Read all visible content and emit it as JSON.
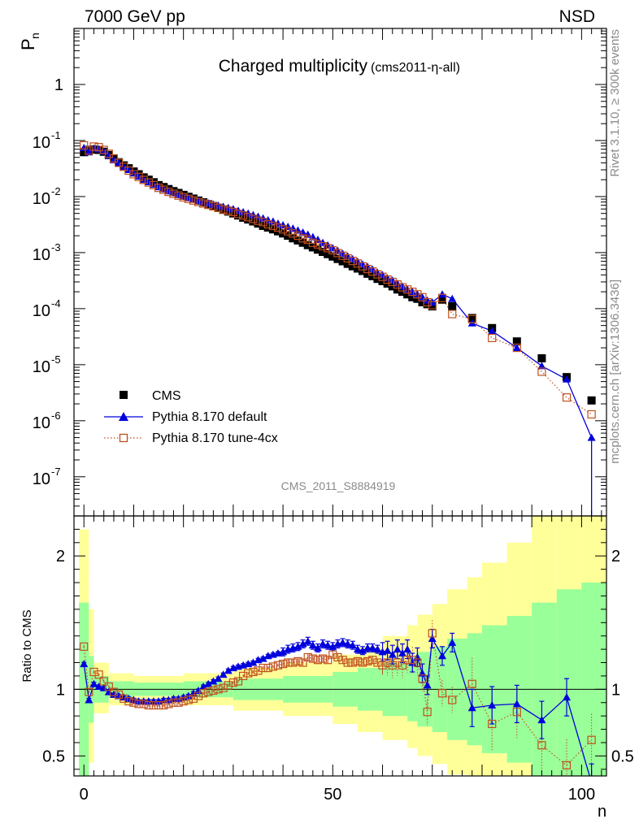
{
  "chart_data": [
    {
      "type": "scatter",
      "panel": "main",
      "title": "Charged multiplicity",
      "title_suffix": "(cms2011-η-all)",
      "top_left": "7000 GeV pp",
      "top_right": "NSD",
      "ylabel_main": "P",
      "ylabel_sub": "n",
      "xlabel": "n",
      "yscale": "log",
      "ylim": [
        2e-08,
        10
      ],
      "xlim": [
        -2,
        105
      ],
      "y_ticks": [
        {
          "value": 1e-07,
          "base": "10",
          "exp": "-7"
        },
        {
          "value": 1e-06,
          "base": "10",
          "exp": "-6"
        },
        {
          "value": 1e-05,
          "base": "10",
          "exp": "-5"
        },
        {
          "value": 0.0001,
          "base": "10",
          "exp": "-4"
        },
        {
          "value": 0.001,
          "base": "10",
          "exp": "-3"
        },
        {
          "value": 0.01,
          "base": "10",
          "exp": "-2"
        },
        {
          "value": 0.1,
          "base": "10",
          "exp": "-1"
        },
        {
          "value": 1,
          "base": "1",
          "exp": ""
        }
      ],
      "analysis_label": "CMS_2011_S8884919",
      "legend": [
        "CMS",
        "Pythia 8.170 default",
        "Pythia 8.170 tune-4cx"
      ],
      "series": [
        {
          "name": "CMS",
          "x": [
            0,
            1,
            2,
            3,
            4,
            5,
            6,
            7,
            8,
            9,
            10,
            11,
            12,
            13,
            14,
            15,
            16,
            17,
            18,
            19,
            20,
            21,
            22,
            23,
            24,
            25,
            26,
            27,
            28,
            29,
            30,
            31,
            32,
            33,
            34,
            35,
            36,
            37,
            38,
            39,
            40,
            41,
            42,
            43,
            44,
            45,
            46,
            47,
            48,
            49,
            50,
            51,
            52,
            53,
            54,
            55,
            56,
            57,
            58,
            59,
            60,
            61,
            62,
            63,
            64,
            65,
            66,
            67,
            68,
            69,
            70,
            72,
            74,
            78,
            82,
            87,
            92,
            97,
            102
          ],
          "y": [
            0.062,
            0.068,
            0.069,
            0.068,
            0.063,
            0.055,
            0.047,
            0.041,
            0.036,
            0.032,
            0.028,
            0.025,
            0.022,
            0.02,
            0.018,
            0.016,
            0.0148,
            0.0136,
            0.0125,
            0.0116,
            0.0107,
            0.0099,
            0.0092,
            0.0085,
            0.0079,
            0.0073,
            0.0068,
            0.0063,
            0.0058,
            0.0054,
            0.005,
            0.0046,
            0.0042,
            0.0039,
            0.0036,
            0.0033,
            0.003,
            0.0028,
            0.0026,
            0.0024,
            0.0022,
            0.002,
            0.0018,
            0.00165,
            0.0015,
            0.00136,
            0.00124,
            0.00113,
            0.00103,
            0.00094,
            0.00085,
            0.00077,
            0.0007,
            0.00063,
            0.00057,
            0.00052,
            0.00047,
            0.00042,
            0.00038,
            0.00034,
            0.00031,
            0.00028,
            0.00025,
            0.00022,
            0.0002,
            0.00018,
            0.00016,
            0.00015,
            0.00013,
            0.00012,
            0.00011,
            0.000145,
            0.00011,
            6.8e-05,
            4.5e-05,
            2.6e-05,
            1.3e-05,
            6e-06,
            2.3e-06
          ]
        },
        {
          "name": "Pythia 8.170 default",
          "x": [
            0,
            1,
            2,
            3,
            4,
            5,
            6,
            7,
            8,
            9,
            10,
            11,
            12,
            13,
            14,
            15,
            16,
            17,
            18,
            19,
            20,
            21,
            22,
            23,
            24,
            25,
            26,
            27,
            28,
            29,
            30,
            31,
            32,
            33,
            34,
            35,
            36,
            37,
            38,
            39,
            40,
            41,
            42,
            43,
            44,
            45,
            46,
            47,
            48,
            49,
            50,
            51,
            52,
            53,
            54,
            55,
            56,
            57,
            58,
            59,
            60,
            61,
            62,
            63,
            64,
            65,
            66,
            67,
            68,
            69,
            70,
            72,
            74,
            78,
            82,
            87,
            92,
            97,
            102
          ],
          "y": [
            0.074,
            0.062,
            0.072,
            0.07,
            0.064,
            0.054,
            0.045,
            0.039,
            0.034,
            0.03,
            0.026,
            0.023,
            0.02,
            0.0182,
            0.0164,
            0.0148,
            0.0136,
            0.0125,
            0.0116,
            0.0107,
            0.01,
            0.0095,
            0.0089,
            0.0084,
            0.008,
            0.0076,
            0.0072,
            0.0069,
            0.0066,
            0.0063,
            0.006,
            0.0056,
            0.0053,
            0.005,
            0.0047,
            0.0044,
            0.0041,
            0.0038,
            0.0036,
            0.0033,
            0.0031,
            0.0029,
            0.0027,
            0.0025,
            0.0023,
            0.0021,
            0.0019,
            0.0017,
            0.0015,
            0.00135,
            0.0012,
            0.00108,
            0.00096,
            0.00086,
            0.00077,
            0.00069,
            0.00062,
            0.00056,
            0.0005,
            0.00044,
            0.0004,
            0.00035,
            0.00032,
            0.00028,
            0.00025,
            0.00022,
            0.0002,
            0.00018,
            0.00016,
            0.00014,
            0.00013,
            0.00018,
            0.00015,
            5.5e-05,
            4e-05,
            2e-05,
            9.5e-06,
            5.5e-06,
            5e-07
          ]
        },
        {
          "name": "Pythia 8.170 tune-4cx",
          "x": [
            0,
            1,
            2,
            3,
            4,
            5,
            6,
            7,
            8,
            9,
            10,
            11,
            12,
            13,
            14,
            15,
            16,
            17,
            18,
            19,
            20,
            21,
            22,
            23,
            24,
            25,
            26,
            27,
            28,
            29,
            30,
            31,
            32,
            33,
            34,
            35,
            36,
            37,
            38,
            39,
            40,
            41,
            42,
            43,
            44,
            45,
            46,
            47,
            48,
            49,
            50,
            51,
            52,
            53,
            54,
            55,
            56,
            57,
            58,
            59,
            60,
            61,
            62,
            63,
            64,
            65,
            66,
            67,
            68,
            69,
            70,
            72,
            74,
            78,
            82,
            87,
            92,
            97,
            102
          ],
          "y": [
            0.082,
            0.066,
            0.078,
            0.076,
            0.068,
            0.058,
            0.048,
            0.04,
            0.034,
            0.029,
            0.025,
            0.0224,
            0.0198,
            0.0178,
            0.016,
            0.0143,
            0.0132,
            0.0121,
            0.0112,
            0.0104,
            0.0097,
            0.0091,
            0.0085,
            0.008,
            0.0075,
            0.0071,
            0.0067,
            0.0063,
            0.0059,
            0.0056,
            0.0053,
            0.0049,
            0.0046,
            0.0043,
            0.004,
            0.0037,
            0.0035,
            0.0032,
            0.003,
            0.0028,
            0.0026,
            0.0024,
            0.0022,
            0.002,
            0.0018,
            0.0017,
            0.0015,
            0.0014,
            0.0013,
            0.0012,
            0.0011,
            0.00098,
            0.00088,
            0.00079,
            0.00071,
            0.00064,
            0.00057,
            0.00051,
            0.00046,
            0.00041,
            0.00037,
            0.00033,
            0.0003,
            0.00027,
            0.00024,
            0.00022,
            0.0002,
            0.00018,
            0.00016,
            0.00013,
            0.000115,
            0.000155,
            8e-05,
            6.5e-05,
            3e-05,
            2e-05,
            7.5e-06,
            2.6e-06,
            1.3e-06
          ]
        }
      ]
    },
    {
      "type": "line",
      "panel": "ratio",
      "ylabel": "Ratio to CMS",
      "ylim": [
        0.35,
        2.3
      ],
      "y_ticks": [
        {
          "value": 0.5,
          "label": "0.5"
        },
        {
          "value": 1,
          "label": "1"
        },
        {
          "value": 2,
          "label": "2"
        }
      ],
      "x_ticks": [
        {
          "value": 0,
          "label": "0"
        },
        {
          "value": 50,
          "label": "50"
        },
        {
          "value": 100,
          "label": "100"
        }
      ],
      "band_edges_x": [
        -1,
        1,
        2,
        5,
        10,
        20,
        30,
        40,
        50,
        55,
        60,
        65,
        67,
        70,
        73,
        77,
        80,
        85,
        90,
        95,
        100,
        105
      ],
      "band_green": [
        1.65,
        1.25,
        1.1,
        1.06,
        1.05,
        1.06,
        1.08,
        1.1,
        1.13,
        1.16,
        1.2,
        1.24,
        1.28,
        1.32,
        1.38,
        1.42,
        1.48,
        1.55,
        1.65,
        1.75,
        1.8
      ],
      "band_green_low": [
        0.35,
        0.75,
        0.9,
        0.94,
        0.95,
        0.94,
        0.92,
        0.9,
        0.87,
        0.84,
        0.8,
        0.76,
        0.72,
        0.68,
        0.62,
        0.58,
        0.52,
        0.45,
        0.35,
        0.3,
        0.25
      ],
      "band_yellow": [
        2.2,
        1.6,
        1.2,
        1.12,
        1.1,
        1.12,
        1.16,
        1.2,
        1.26,
        1.32,
        1.4,
        1.48,
        1.56,
        1.64,
        1.75,
        1.84,
        1.95,
        2.1,
        2.3,
        2.4,
        2.5
      ],
      "band_yellow_low": [
        0.2,
        0.45,
        0.82,
        0.88,
        0.9,
        0.88,
        0.84,
        0.8,
        0.74,
        0.68,
        0.62,
        0.56,
        0.5,
        0.44,
        0.36,
        0.3,
        0.22,
        0.15,
        0.1,
        0.05,
        0.02
      ],
      "reference": 1.0,
      "series": [
        {
          "name": "Pythia 8.170 default",
          "x": [
            0,
            1,
            2,
            3,
            4,
            5,
            6,
            7,
            8,
            9,
            10,
            11,
            12,
            13,
            14,
            15,
            16,
            17,
            18,
            19,
            20,
            21,
            22,
            23,
            24,
            25,
            26,
            27,
            28,
            29,
            30,
            31,
            32,
            33,
            34,
            35,
            36,
            37,
            38,
            39,
            40,
            41,
            42,
            43,
            44,
            45,
            46,
            47,
            48,
            49,
            50,
            51,
            52,
            53,
            54,
            55,
            56,
            57,
            58,
            59,
            60,
            61,
            62,
            63,
            64,
            65,
            66,
            67,
            68,
            69,
            70,
            72,
            74,
            78,
            82,
            87,
            92,
            97,
            102
          ],
          "y": [
            1.19,
            0.92,
            1.04,
            1.02,
            1.01,
            0.98,
            0.96,
            0.95,
            0.94,
            0.93,
            0.92,
            0.91,
            0.91,
            0.91,
            0.91,
            0.91,
            0.92,
            0.92,
            0.93,
            0.93,
            0.94,
            0.95,
            0.97,
            0.99,
            1.02,
            1.04,
            1.06,
            1.08,
            1.11,
            1.14,
            1.16,
            1.17,
            1.18,
            1.19,
            1.2,
            1.22,
            1.23,
            1.25,
            1.26,
            1.27,
            1.28,
            1.3,
            1.31,
            1.32,
            1.34,
            1.36,
            1.33,
            1.31,
            1.34,
            1.33,
            1.32,
            1.34,
            1.35,
            1.34,
            1.33,
            1.3,
            1.29,
            1.31,
            1.31,
            1.3,
            1.28,
            1.29,
            1.26,
            1.3,
            1.27,
            1.3,
            1.2,
            1.24,
            1.12,
            1.03,
            1.38,
            1.25,
            1.35,
            0.86,
            0.88,
            0.89,
            0.77,
            0.94,
            0.3
          ]
        },
        {
          "name": "Pythia 8.170 tune-4cx",
          "x": [
            0,
            1,
            2,
            3,
            4,
            5,
            6,
            7,
            8,
            9,
            10,
            11,
            12,
            13,
            14,
            15,
            16,
            17,
            18,
            19,
            20,
            21,
            22,
            23,
            24,
            25,
            26,
            27,
            28,
            29,
            30,
            31,
            32,
            33,
            34,
            35,
            36,
            37,
            38,
            39,
            40,
            41,
            42,
            43,
            44,
            45,
            46,
            47,
            48,
            49,
            50,
            51,
            52,
            53,
            54,
            55,
            56,
            57,
            58,
            59,
            60,
            61,
            62,
            63,
            64,
            65,
            66,
            67,
            68,
            69,
            70,
            72,
            74,
            78,
            82,
            87,
            92,
            97,
            102
          ],
          "y": [
            1.32,
            0.98,
            1.13,
            1.11,
            1.06,
            1.02,
            0.98,
            0.96,
            0.93,
            0.91,
            0.9,
            0.89,
            0.89,
            0.88,
            0.88,
            0.88,
            0.88,
            0.89,
            0.9,
            0.9,
            0.91,
            0.92,
            0.93,
            0.95,
            0.97,
            0.98,
            0.99,
            1.0,
            1.01,
            1.03,
            1.05,
            1.06,
            1.1,
            1.12,
            1.13,
            1.14,
            1.16,
            1.16,
            1.17,
            1.18,
            1.19,
            1.2,
            1.2,
            1.21,
            1.2,
            1.24,
            1.23,
            1.22,
            1.23,
            1.22,
            1.26,
            1.24,
            1.22,
            1.2,
            1.2,
            1.21,
            1.2,
            1.21,
            1.22,
            1.2,
            1.18,
            1.2,
            1.18,
            1.2,
            1.18,
            1.22,
            1.22,
            1.2,
            1.08,
            0.83,
            1.42,
            0.97,
            0.92,
            1.04,
            0.74,
            0.83,
            0.58,
            0.43,
            0.62
          ]
        }
      ]
    }
  ],
  "side_labels": {
    "rivet": "Rivet 3.1.10, ≥ 300k events",
    "mcplots": "mcplots.cern.ch [arXiv:1306.3436]"
  },
  "colors": {
    "cms": "#000000",
    "default": "#0000dd",
    "tune": "#c0501e",
    "band_green": "#99ff99",
    "band_yellow": "#ffff99"
  }
}
